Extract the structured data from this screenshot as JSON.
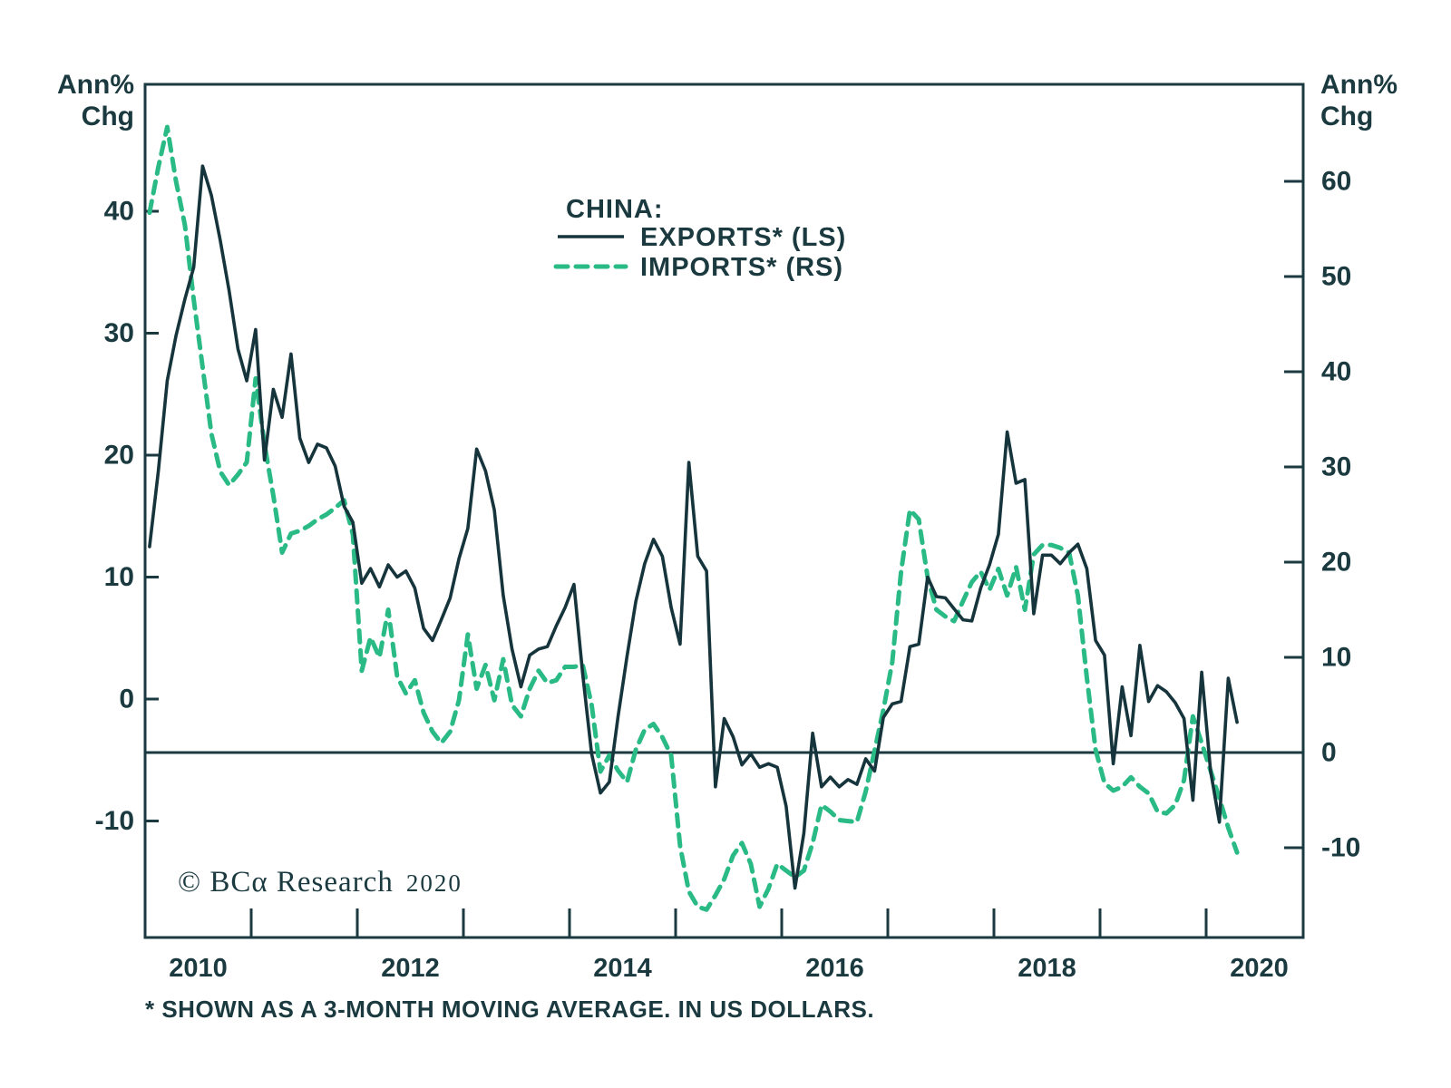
{
  "colors": {
    "ink": "#1b3a40",
    "exports_line": "#16343b",
    "imports_line": "#29ba86",
    "background": "#ffffff"
  },
  "axis_titles": {
    "left_line1": "Ann%",
    "left_line2": "Chg",
    "right_line1": "Ann%",
    "right_line2": "Chg"
  },
  "legend": {
    "title": "CHINA:"
  },
  "watermark": {
    "text": "© BCα Research",
    "year": "2020"
  },
  "footnote": "* SHOWN AS A 3-MONTH MOVING AVERAGE. IN US DOLLARS.",
  "chart_data": {
    "type": "line",
    "title": "CHINA: EXPORTS (LS) vs IMPORTS (RS), Ann% Chg",
    "x": {
      "frequency": "monthly",
      "start_year": 2010,
      "start_month": 1,
      "end_year": 2020,
      "end_month": 4,
      "year_tick_marks": [
        2011,
        2012,
        2013,
        2014,
        2015,
        2016,
        2017,
        2018,
        2019,
        2020
      ],
      "year_labels": [
        2010,
        2012,
        2014,
        2016,
        2018,
        2020
      ]
    },
    "left_axis": {
      "label": "Ann% Chg",
      "ticks": [
        40,
        30,
        20,
        10,
        0,
        -10
      ],
      "applies_to": "EXPORTS* (LS)"
    },
    "right_axis": {
      "label": "Ann% Chg",
      "ticks": [
        60,
        50,
        40,
        30,
        20,
        10,
        0,
        -10
      ],
      "applies_to": "IMPORTS* (RS)",
      "zero_line": true
    },
    "series": [
      {
        "name": "EXPORTS* (LS)",
        "axis": "left",
        "line_style": "solid",
        "values": [
          12.5,
          18.7,
          26.1,
          29.8,
          32.8,
          35.4,
          43.7,
          41.3,
          37.6,
          33.5,
          28.7,
          26.1,
          30.3,
          19.6,
          25.4,
          23.1,
          28.3,
          21.4,
          19.4,
          20.9,
          20.6,
          19.1,
          15.8,
          14.5,
          9.5,
          10.7,
          9.2,
          11.0,
          10.0,
          10.5,
          9.1,
          5.8,
          4.8,
          6.5,
          8.3,
          11.5,
          14.0,
          20.5,
          18.7,
          15.5,
          8.5,
          4.1,
          1.0,
          3.6,
          4.1,
          4.3,
          6.0,
          7.5,
          9.4,
          2.0,
          -4.5,
          -7.7,
          -6.8,
          -1.4,
          3.5,
          8.0,
          11.1,
          13.1,
          11.7,
          7.5,
          4.5,
          19.4,
          11.7,
          10.5,
          -7.2,
          -1.6,
          -3.1,
          -5.4,
          -4.5,
          -5.6,
          -5.3,
          -5.6,
          -8.8,
          -15.5,
          -11.0,
          -2.8,
          -7.2,
          -6.4,
          -7.2,
          -6.6,
          -7.0,
          -4.9,
          -5.9,
          -1.5,
          -0.4,
          -0.2,
          4.3,
          4.5,
          10.0,
          8.4,
          8.3,
          7.4,
          6.5,
          6.4,
          9.1,
          11.0,
          13.5,
          21.9,
          17.7,
          18.0,
          7.0,
          11.8,
          11.8,
          11.1,
          12.0,
          12.7,
          10.7,
          4.8,
          3.6,
          -5.3,
          1.0,
          -3.0,
          4.4,
          -0.2,
          1.1,
          0.6,
          -0.3,
          -1.6,
          -8.3,
          2.2,
          -5.9,
          -10.1,
          1.7,
          -1.9
        ]
      },
      {
        "name": "IMPORTS* (RS)",
        "axis": "right",
        "line_style": "dashed",
        "values": [
          56.7,
          61.5,
          65.7,
          60.0,
          55.4,
          47.6,
          40.5,
          33.5,
          29.5,
          28.1,
          29.2,
          30.5,
          39.3,
          32.4,
          27.0,
          21.0,
          23.0,
          23.3,
          23.8,
          24.5,
          25.0,
          25.7,
          26.5,
          22.9,
          8.6,
          12.1,
          10.0,
          15.0,
          8.0,
          6.2,
          7.6,
          4.2,
          2.2,
          1.0,
          2.2,
          5.5,
          12.4,
          6.7,
          9.2,
          5.5,
          9.8,
          5.0,
          3.8,
          6.7,
          8.6,
          7.3,
          7.6,
          9.0,
          9.0,
          9.2,
          5.0,
          -2.0,
          -0.3,
          -1.9,
          -3.1,
          0.3,
          2.4,
          3.0,
          1.6,
          -0.3,
          -9.8,
          -14.6,
          -16.2,
          -16.5,
          -15.0,
          -13.3,
          -10.8,
          -9.5,
          -11.7,
          -16.2,
          -14.3,
          -11.7,
          -12.4,
          -13.1,
          -12.4,
          -9.5,
          -5.5,
          -6.2,
          -7.1,
          -7.2,
          -7.3,
          -4.1,
          0.2,
          4.5,
          9.5,
          19.0,
          25.5,
          24.5,
          18.4,
          15.0,
          14.3,
          13.8,
          15.9,
          17.9,
          19.0,
          17.1,
          19.3,
          16.5,
          19.5,
          15.0,
          20.8,
          21.8,
          21.8,
          21.5,
          21.0,
          16.5,
          7.9,
          0.3,
          -3.2,
          -4.0,
          -3.6,
          -2.6,
          -3.6,
          -4.3,
          -6.2,
          -6.4,
          -5.5,
          -2.9,
          3.8,
          1.0,
          -1.9,
          -4.8,
          -7.9,
          -10.5
        ]
      }
    ]
  }
}
